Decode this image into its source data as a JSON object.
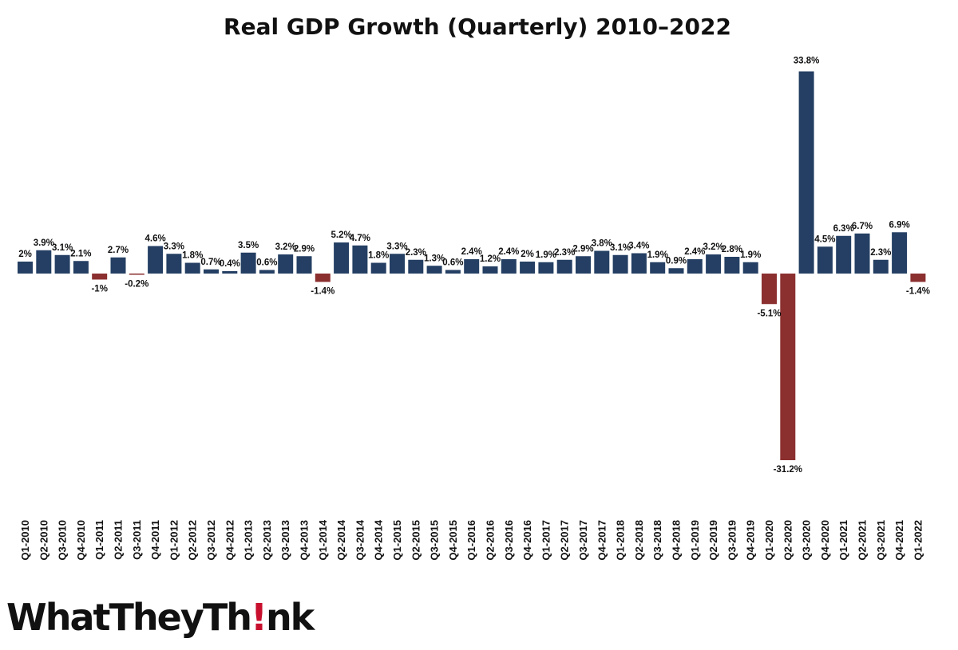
{
  "branding": {
    "logo_text": "WhatTheyThink",
    "logo_accent_color": "#c8102e"
  },
  "colors": {
    "positive": "#243f63",
    "negative": "#8b2f2f"
  },
  "chart_data": {
    "type": "bar",
    "title": "Real GDP Growth (Quarterly) 2010–2022",
    "xlabel": "",
    "ylabel": "",
    "grid": false,
    "legend": "none",
    "ylim": [
      -35,
      36
    ],
    "categories": [
      "Q1-2010",
      "Q2-2010",
      "Q3-2010",
      "Q4-2010",
      "Q1-2011",
      "Q2-2011",
      "Q3-2011",
      "Q4-2011",
      "Q1-2012",
      "Q2-2012",
      "Q3-2012",
      "Q4-2012",
      "Q1-2013",
      "Q2-2013",
      "Q3-2013",
      "Q4-2013",
      "Q1-2014",
      "Q2-2014",
      "Q3-2014",
      "Q4-2014",
      "Q1-2015",
      "Q2-2015",
      "Q3-2015",
      "Q4-2015",
      "Q1-2016",
      "Q2-2016",
      "Q3-2016",
      "Q4-2016",
      "Q1-2017",
      "Q2-2017",
      "Q3-2017",
      "Q4-2017",
      "Q1-2018",
      "Q2-2018",
      "Q3-2018",
      "Q4-2018",
      "Q1-2019",
      "Q2-2019",
      "Q3-2019",
      "Q4-2019",
      "Q1-2020",
      "Q2-2020",
      "Q3-2020",
      "Q4-2020",
      "Q1-2021",
      "Q2-2021",
      "Q3-2021",
      "Q4-2021",
      "Q1-2022"
    ],
    "values": [
      2,
      3.9,
      3.1,
      2.1,
      -1,
      2.7,
      -0.2,
      4.6,
      3.3,
      1.8,
      0.7,
      0.4,
      3.5,
      0.6,
      3.2,
      2.9,
      -1.4,
      5.2,
      4.7,
      1.8,
      3.3,
      2.3,
      1.3,
      0.6,
      2.4,
      1.2,
      2.4,
      2,
      1.9,
      2.3,
      2.9,
      3.8,
      3.1,
      3.4,
      1.9,
      0.9,
      2.4,
      3.2,
      2.8,
      1.9,
      -5.1,
      -31.2,
      33.8,
      4.5,
      6.3,
      6.7,
      2.3,
      6.9,
      -1.4
    ],
    "data_labels": [
      "2%",
      "3.9%",
      "3.1%",
      "2.1%",
      "-1%",
      "2.7%",
      "-0.2%",
      "4.6%",
      "3.3%",
      "1.8%",
      "0.7%",
      "0.4%",
      "3.5%",
      "0.6%",
      "3.2%",
      "2.9%",
      "-1.4%",
      "5.2%",
      "4.7%",
      "1.8%",
      "3.3%",
      "2.3%",
      "1.3%",
      "0.6%",
      "2.4%",
      "1.2%",
      "2.4%",
      "2%",
      "1.9%",
      "2.3%",
      "2.9%",
      "3.8%",
      "3.1%",
      "3.4%",
      "1.9%",
      "0.9%",
      "2.4%",
      "3.2%",
      "2.8%",
      "1.9%",
      "-5.1%",
      "-31.2%",
      "33.8%",
      "4.5%",
      "6.3%",
      "6.7%",
      "2.3%",
      "6.9%",
      "-1.4%"
    ]
  }
}
